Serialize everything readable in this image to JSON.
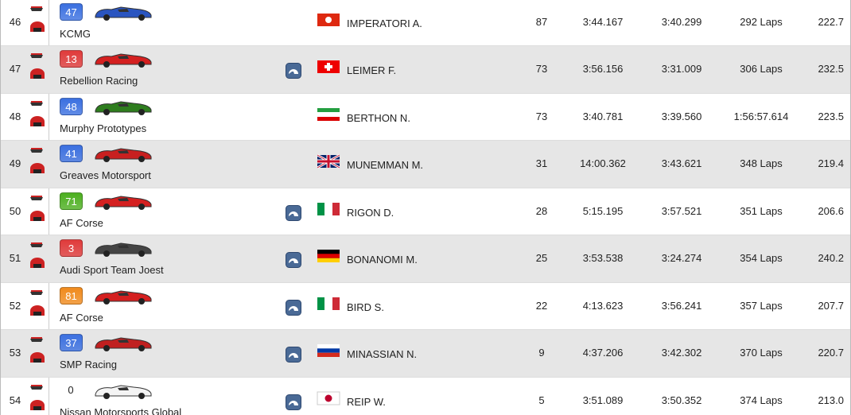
{
  "table": {
    "rows": [
      {
        "position": "46",
        "number": "47",
        "team": "KCMG",
        "driver": "IMPERATORI A.",
        "laps": "87",
        "last_lap": "3:44.167",
        "best_lap": "3:40.299",
        "gap": "292 Laps",
        "speed": "222.7"
      },
      {
        "position": "47",
        "number": "13",
        "team": "Rebellion Racing",
        "driver": "LEIMER F.",
        "laps": "73",
        "last_lap": "3:56.156",
        "best_lap": "3:31.009",
        "gap": "306 Laps",
        "speed": "232.5"
      },
      {
        "position": "48",
        "number": "48",
        "team": "Murphy Prototypes",
        "driver": "BERTHON N.",
        "laps": "73",
        "last_lap": "3:40.781",
        "best_lap": "3:39.560",
        "gap": "1:56:57.614",
        "speed": "223.5"
      },
      {
        "position": "49",
        "number": "41",
        "team": "Greaves Motorsport",
        "driver": "MUNEMMAN M.",
        "laps": "31",
        "last_lap": "14:00.362",
        "best_lap": "3:43.621",
        "gap": "348 Laps",
        "speed": "219.4"
      },
      {
        "position": "50",
        "number": "71",
        "team": "AF Corse",
        "driver": "RIGON D.",
        "laps": "28",
        "last_lap": "5:15.195",
        "best_lap": "3:57.521",
        "gap": "351 Laps",
        "speed": "206.6"
      },
      {
        "position": "51",
        "number": "3",
        "team": "Audi Sport Team Joest",
        "driver": "BONANOMI M.",
        "laps": "25",
        "last_lap": "3:53.538",
        "best_lap": "3:24.274",
        "gap": "354 Laps",
        "speed": "240.2"
      },
      {
        "position": "52",
        "number": "81",
        "team": "AF Corse",
        "driver": "BIRD S.",
        "laps": "22",
        "last_lap": "4:13.623",
        "best_lap": "3:56.241",
        "gap": "357 Laps",
        "speed": "207.7"
      },
      {
        "position": "53",
        "number": "37",
        "team": "SMP Racing",
        "driver": "MINASSIAN N.",
        "laps": "9",
        "last_lap": "4:37.206",
        "best_lap": "3:42.302",
        "gap": "370 Laps",
        "speed": "220.7"
      },
      {
        "position": "54",
        "number": "0",
        "team": "Nissan Motorsports Global",
        "driver": "REIP W.",
        "laps": "5",
        "last_lap": "3:51.089",
        "best_lap": "3:50.352",
        "gap": "374 Laps",
        "speed": "213.0"
      }
    ]
  }
}
